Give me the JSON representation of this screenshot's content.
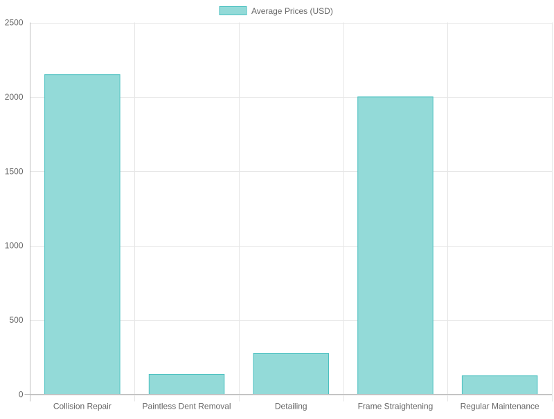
{
  "chart_data": {
    "type": "bar",
    "categories": [
      "Collision Repair",
      "Paintless Dent Removal",
      "Detailing",
      "Frame Straightening",
      "Regular Maintenance"
    ],
    "series": [
      {
        "name": "Average Prices (USD)",
        "values": [
          2150,
          135,
          275,
          2000,
          125
        ]
      }
    ],
    "ylim": [
      0,
      2500
    ],
    "yticks": [
      0,
      500,
      1000,
      1500,
      2000,
      2500
    ],
    "grid": true,
    "legend_position": "top-center",
    "colors": {
      "bar_fill": "#93dad8",
      "bar_border": "#4bc0c0",
      "grid": "#e6e6e6",
      "axis": "#bdbdbd",
      "tick_text": "#666666"
    }
  }
}
